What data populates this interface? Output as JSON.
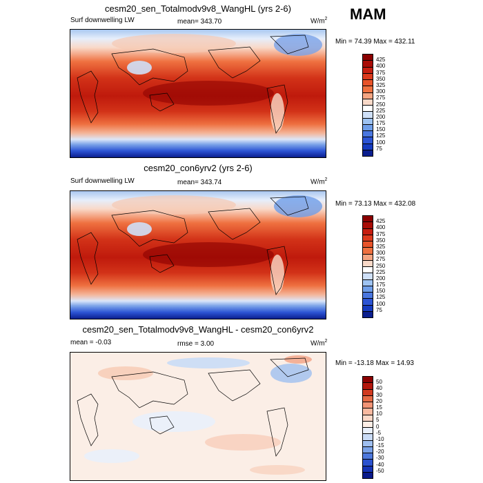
{
  "season": "MAM",
  "panels": [
    {
      "title": "cesm20_sen_Totalmodv9v8_WangHL (yrs 2-6)",
      "left_label": "Surf downwelling LW",
      "stat": "mean= 343.70",
      "units": "W/m",
      "units_sup": "2",
      "minmax": "Min = 74.39 Max = 432.11",
      "levels": [
        "425",
        "400",
        "375",
        "350",
        "325",
        "300",
        "275",
        "250",
        "225",
        "200",
        "175",
        "150",
        "125",
        "100",
        "75"
      ],
      "colors": [
        "#8b0000",
        "#a90c06",
        "#c61e10",
        "#dc3a1d",
        "#e8542a",
        "#ef7140",
        "#f4a582",
        "#f9d9c8",
        "#ffffff",
        "#cfe0f8",
        "#9ec3f2",
        "#6f9ee9",
        "#4a77e0",
        "#2c54d4",
        "#163bbf",
        "#0b1f8f"
      ]
    },
    {
      "title": "cesm20_con6yrv2 (yrs 2-6)",
      "left_label": "Surf downwelling LW",
      "stat": "mean= 343.74",
      "units": "W/m",
      "units_sup": "2",
      "minmax": "Min = 73.13 Max = 432.08",
      "levels": [
        "425",
        "400",
        "375",
        "350",
        "325",
        "300",
        "275",
        "250",
        "225",
        "200",
        "175",
        "150",
        "125",
        "100",
        "75"
      ],
      "colors": [
        "#8b0000",
        "#a90c06",
        "#c61e10",
        "#dc3a1d",
        "#e8542a",
        "#ef7140",
        "#f4a582",
        "#f9d9c8",
        "#ffffff",
        "#cfe0f8",
        "#9ec3f2",
        "#6f9ee9",
        "#4a77e0",
        "#2c54d4",
        "#163bbf",
        "#0b1f8f"
      ]
    },
    {
      "title": "cesm20_sen_Totalmodv9v8_WangHL - cesm20_con6yrv2",
      "left_label": "mean = -0.03",
      "stat": "rmse = 3.00",
      "units": "W/m",
      "units_sup": "2",
      "minmax": "Min = -13.18 Max = 14.93",
      "levels": [
        "50",
        "40",
        "30",
        "20",
        "15",
        "10",
        "5",
        "0",
        "-5",
        "-10",
        "-15",
        "-20",
        "-30",
        "-40",
        "-50"
      ],
      "colors": [
        "#8b0000",
        "#b3170c",
        "#d13a20",
        "#e56a45",
        "#f29476",
        "#f8b9a0",
        "#fbd8c8",
        "#fdeee6",
        "#e9f0fb",
        "#c9dbf6",
        "#9fbff0",
        "#7aa2e8",
        "#4d78dd",
        "#2b52cf",
        "#1533b5",
        "#0a1a8a"
      ]
    }
  ]
}
